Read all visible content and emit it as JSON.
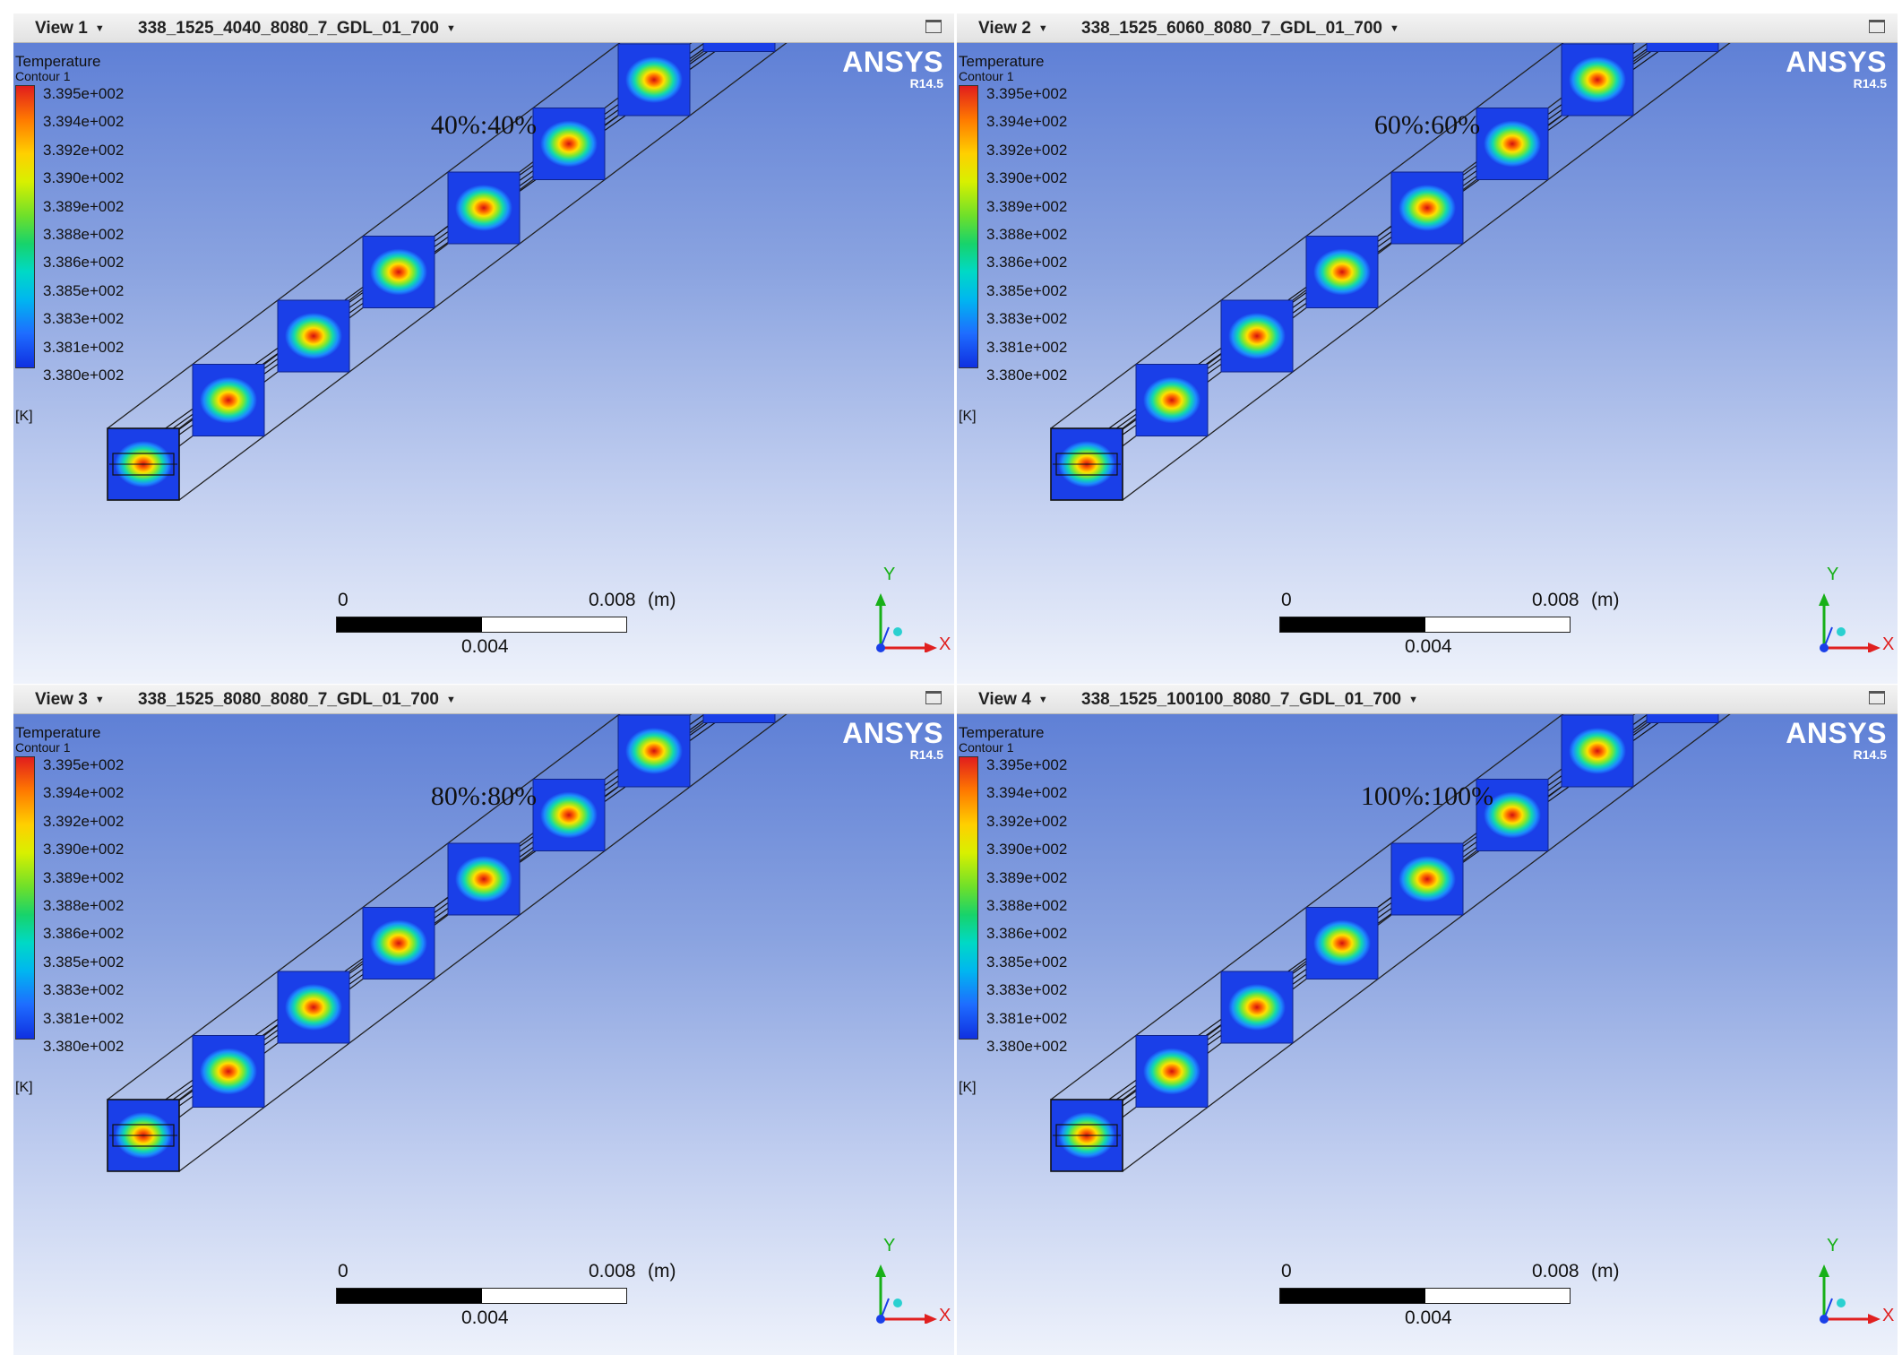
{
  "views": [
    {
      "view_label": "View 1",
      "file_name": "338_1525_4040_8080_7_GDL_01_700",
      "caption": "40%:40%",
      "legend_title": "Temperature",
      "legend_subtitle": "Contour 1",
      "legend_ticks": [
        "3.395e+002",
        "3.394e+002",
        "3.392e+002",
        "3.390e+002",
        "3.389e+002",
        "3.388e+002",
        "3.386e+002",
        "3.385e+002",
        "3.383e+002",
        "3.381e+002",
        "3.380e+002"
      ],
      "legend_unit": "[K]",
      "brand": "ANSYS",
      "version": "R14.5",
      "scale": {
        "zero": "0",
        "max": "0.008",
        "unit": "(m)",
        "mid": "0.004"
      },
      "axis": {
        "y": "Y",
        "x": "X"
      }
    },
    {
      "view_label": "View 2",
      "file_name": "338_1525_6060_8080_7_GDL_01_700",
      "caption": "60%:60%",
      "legend_title": "Temperature",
      "legend_subtitle": "Contour 1",
      "legend_ticks": [
        "3.395e+002",
        "3.394e+002",
        "3.392e+002",
        "3.390e+002",
        "3.389e+002",
        "3.388e+002",
        "3.386e+002",
        "3.385e+002",
        "3.383e+002",
        "3.381e+002",
        "3.380e+002"
      ],
      "legend_unit": "[K]",
      "brand": "ANSYS",
      "version": "R14.5",
      "scale": {
        "zero": "0",
        "max": "0.008",
        "unit": "(m)",
        "mid": "0.004"
      },
      "axis": {
        "y": "Y",
        "x": "X"
      }
    },
    {
      "view_label": "View 3",
      "file_name": "338_1525_8080_8080_7_GDL_01_700",
      "caption": "80%:80%",
      "legend_title": "Temperature",
      "legend_subtitle": "Contour 1",
      "legend_ticks": [
        "3.395e+002",
        "3.394e+002",
        "3.392e+002",
        "3.390e+002",
        "3.389e+002",
        "3.388e+002",
        "3.386e+002",
        "3.385e+002",
        "3.383e+002",
        "3.381e+002",
        "3.380e+002"
      ],
      "legend_unit": "[K]",
      "brand": "ANSYS",
      "version": "R14.5",
      "scale": {
        "zero": "0",
        "max": "0.008",
        "unit": "(m)",
        "mid": "0.004"
      },
      "axis": {
        "y": "Y",
        "x": "X"
      }
    },
    {
      "view_label": "View 4",
      "file_name": "338_1525_100100_8080_7_GDL_01_700",
      "caption": "100%:100%",
      "legend_title": "Temperature",
      "legend_subtitle": "Contour 1",
      "legend_ticks": [
        "3.395e+002",
        "3.394e+002",
        "3.392e+002",
        "3.390e+002",
        "3.389e+002",
        "3.388e+002",
        "3.386e+002",
        "3.385e+002",
        "3.383e+002",
        "3.381e+002",
        "3.380e+002"
      ],
      "legend_unit": "[K]",
      "brand": "ANSYS",
      "version": "R14.5",
      "scale": {
        "zero": "0",
        "max": "0.008",
        "unit": "(m)",
        "mid": "0.004"
      },
      "axis": {
        "y": "Y",
        "x": "X"
      }
    }
  ],
  "colors": {
    "background_top": "#5f80d6",
    "background_bottom": "#eef2fb",
    "slice_blue": "#1a3fe8",
    "hot": "#e11d1d",
    "axis_y": "#18b018",
    "axis_x": "#e02020",
    "axis_z": "#1a3fe8"
  },
  "icons": [
    "maximize-icon",
    "dropdown-arrow-icon",
    "coordinate-axis-icon"
  ]
}
